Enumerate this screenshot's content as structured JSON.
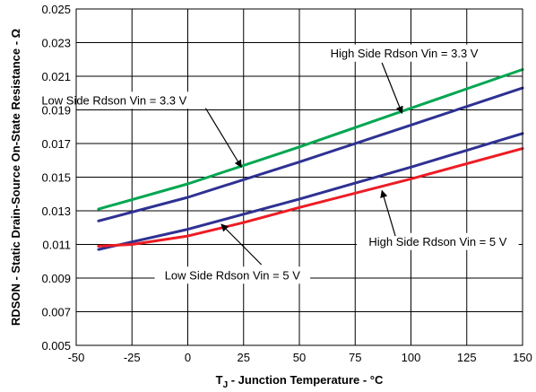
{
  "chart_data": {
    "type": "line",
    "xlabel_main": "T",
    "xlabel_sub": "J",
    "xlabel_rest": " - Junction Temperature - °C",
    "ylabel": "RDSON - Static Drain-Source On-State Resistance - Ω",
    "xlim": [
      -50,
      150
    ],
    "ylim": [
      0.005,
      0.025
    ],
    "xticks": [
      -50,
      -25,
      0,
      25,
      50,
      75,
      100,
      125,
      150
    ],
    "xtick_labels": [
      "-50",
      "-25",
      "0",
      "25",
      "50",
      "75",
      "100",
      "125",
      "150"
    ],
    "yticks": [
      0.005,
      0.007,
      0.009,
      0.011,
      0.013,
      0.015,
      0.017,
      0.019,
      0.021,
      0.023,
      0.025
    ],
    "ytick_labels": [
      "0.005",
      "0.007",
      "0.009",
      "0.011",
      "0.013",
      "0.015",
      "0.017",
      "0.019",
      "0.021",
      "0.023",
      "0.025"
    ],
    "grid": true,
    "series": [
      {
        "name": "High Side Rdson Vin = 3.3 V",
        "color": "#00a651",
        "x": [
          -40,
          0,
          50,
          100,
          150
        ],
        "y": [
          0.0131,
          0.0146,
          0.0168,
          0.0191,
          0.0214
        ]
      },
      {
        "name": "Low Side Rdson Vin = 3.3 V",
        "color": "#2e3192",
        "x": [
          -40,
          0,
          50,
          100,
          150
        ],
        "y": [
          0.0124,
          0.0138,
          0.0159,
          0.0181,
          0.0203
        ]
      },
      {
        "name": "Low Side Rdson Vin = 5 V",
        "color": "#2e3192",
        "x": [
          -40,
          0,
          50,
          100,
          150
        ],
        "y": [
          0.0107,
          0.0119,
          0.0137,
          0.0156,
          0.0176
        ]
      },
      {
        "name": "High Side Rdson Vin = 5 V",
        "color": "#ed1c24",
        "x": [
          -40,
          -25,
          0,
          25,
          50,
          100,
          150
        ],
        "y": [
          0.0109,
          0.011,
          0.0115,
          0.0123,
          0.0132,
          0.0149,
          0.0167
        ]
      }
    ],
    "annotations": [
      {
        "text": "High Side Rdson Vin = 3.3 V",
        "text_x": 97,
        "text_y": 0.0224,
        "arrow_from": [
          87,
          0.0218
        ],
        "arrow_to": [
          96,
          0.0188
        ]
      },
      {
        "text": "Low Side Rdson Vin = 3.3 V",
        "text_x": -33,
        "text_y": 0.0196,
        "arrow_from": [
          8,
          0.0191
        ],
        "arrow_to": [
          24,
          0.0156
        ]
      },
      {
        "text": "High Side Rdson Vin = 5 V",
        "text_x": 112,
        "text_y": 0.0112,
        "arrow_from": [
          93,
          0.0115
        ],
        "arrow_to": [
          87,
          0.0142
        ]
      },
      {
        "text": "Low Side Rdson Vin = 5 V",
        "text_x": 20,
        "text_y": 0.0092,
        "arrow_from": [
          33,
          0.0098
        ],
        "arrow_to": [
          15,
          0.0122
        ]
      }
    ]
  }
}
